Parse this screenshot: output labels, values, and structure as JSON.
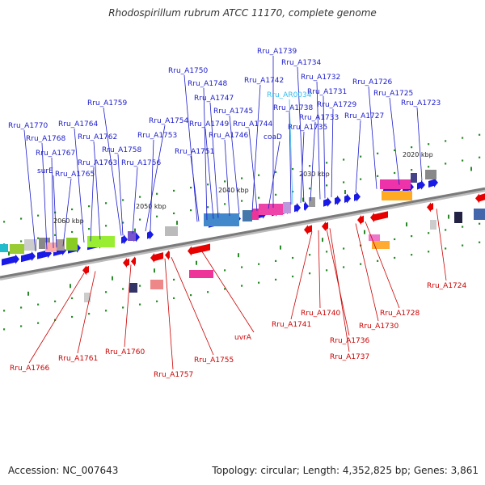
{
  "title": "Rhodospirillum rubrum ATCC 11170, complete genome",
  "footer": {
    "accession": "Accession: NC_007643",
    "topology": "Topology: circular; Length: 4,352,825 bp; Genes: 3,861"
  },
  "colors": {
    "forward_gene": "#1a1ae6",
    "reverse_gene": "#e60000",
    "forward_label": "#1a1acc",
    "reverse_label": "#cc0000",
    "rna_label": "#33bbee",
    "backbone": "#888888",
    "tick": "#2a8a2a"
  },
  "kbp_ticks": [
    "2060 kbp",
    "2050 kbp",
    "2040 kbp",
    "2030 kbp",
    "2020 kbp"
  ],
  "forward_labels": [
    "Rru_A1770",
    "Rru_A1768",
    "Rru_A1767",
    "surE",
    "Rru_A1765",
    "Rru_A1764",
    "Rru_A1763",
    "Rru_A1762",
    "Rru_A1759",
    "Rru_A1758",
    "Rru_A1756",
    "Rru_A1754",
    "Rru_A1753",
    "Rru_A1751",
    "Rru_A1750",
    "Rru_A1749",
    "Rru_A1748",
    "Rru_A1747",
    "Rru_A1746",
    "Rru_A1745",
    "Rru_A1744",
    "Rru_A1742",
    "coaD",
    "Rru_A1739",
    "Rru_A1738",
    "Rru_A1735",
    "Rru_A1734",
    "Rru_A1733",
    "Rru_A1732",
    "Rru_A1731",
    "Rru_A1729",
    "Rru_A1727",
    "Rru_A1726",
    "Rru_A1725",
    "Rru_A1723"
  ],
  "rna_labels": [
    "Rru_AR0034"
  ],
  "reverse_labels": [
    "Rru_A1766",
    "Rru_A1761",
    "Rru_A1760",
    "Rru_A1757",
    "Rru_A1755",
    "uvrA",
    "Rru_A1741",
    "Rru_A1740",
    "Rru_A1736",
    "Rru_A1737",
    "Rru_A1730",
    "Rru_A1728",
    "Rru_A1724"
  ]
}
